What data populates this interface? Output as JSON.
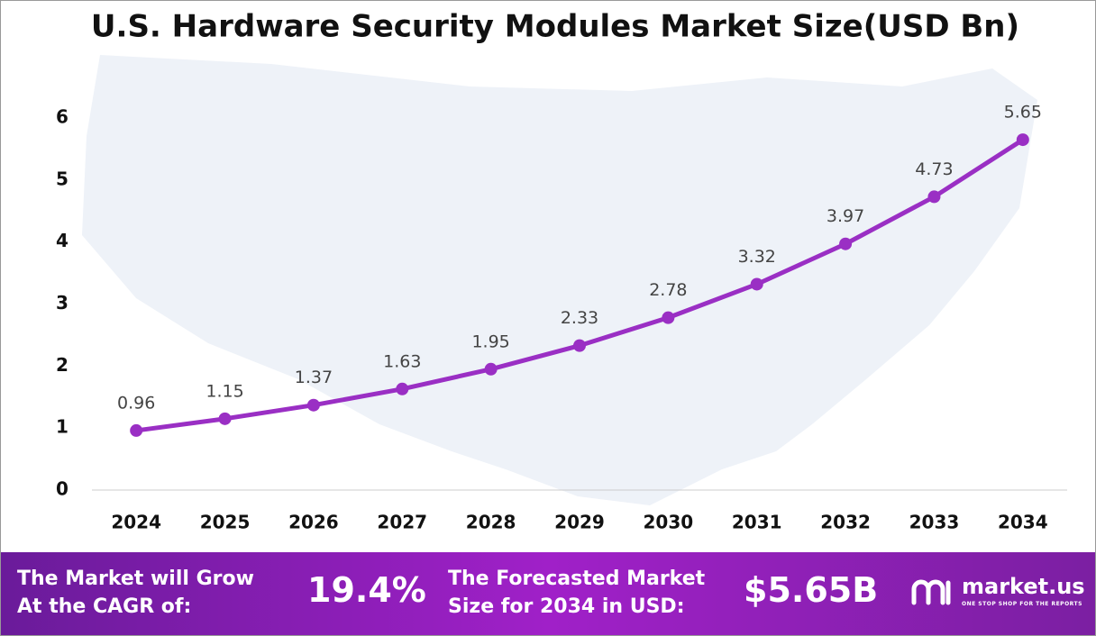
{
  "chart_data": {
    "type": "line",
    "title": "U.S. Hardware Security Modules Market Size(USD Bn)",
    "categories": [
      "2024",
      "2025",
      "2026",
      "2027",
      "2028",
      "2029",
      "2030",
      "2031",
      "2032",
      "2033",
      "2034"
    ],
    "series": [
      {
        "name": "Market Size",
        "color": "#9a2fc4",
        "values": [
          0.96,
          1.15,
          1.37,
          1.63,
          1.95,
          2.33,
          2.78,
          3.32,
          3.97,
          4.73,
          5.65
        ]
      }
    ],
    "ylim": [
      0,
      6
    ],
    "yticks": [
      0,
      1,
      2,
      3,
      4,
      5,
      6
    ],
    "grid": false
  },
  "footer": {
    "cagr_text": "The Market will Grow At the CAGR of:",
    "cagr_value": "19.4%",
    "forecast_text": "The Forecasted Market Size for 2034 in USD:",
    "forecast_value": "$5.65B",
    "brand": "market.us",
    "tagline": "ONE STOP SHOP FOR THE REPORTS"
  }
}
